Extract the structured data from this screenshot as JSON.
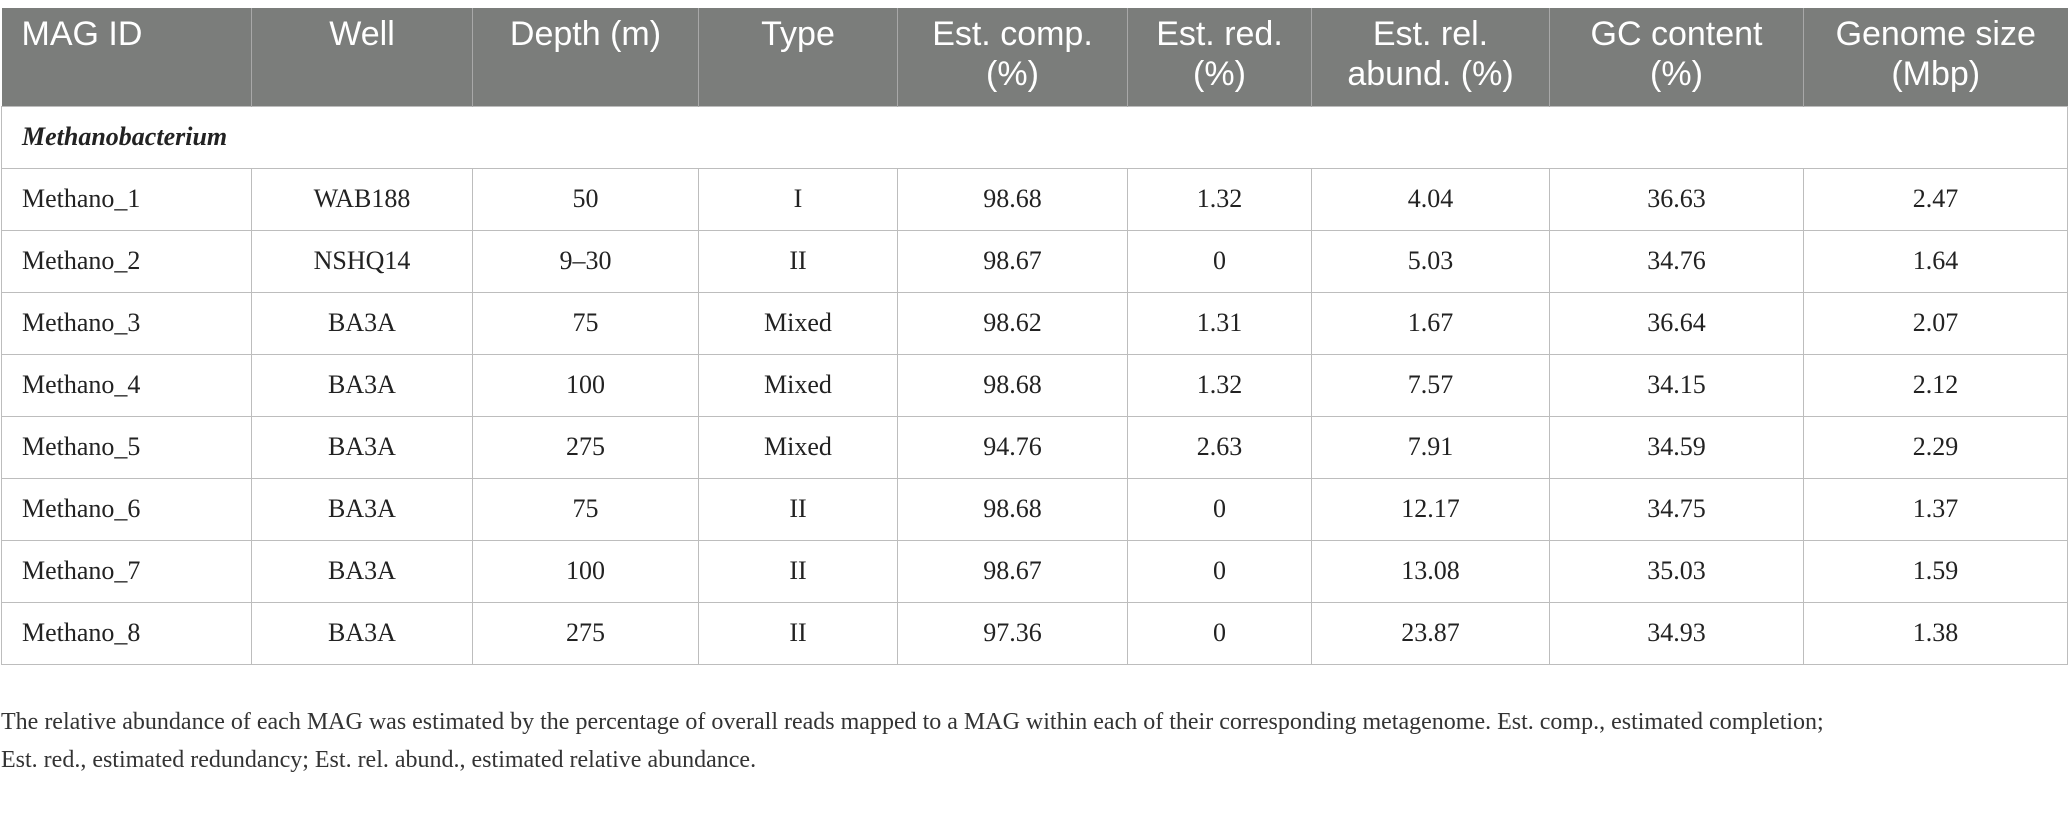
{
  "table": {
    "headers": [
      [
        "MAG ID"
      ],
      [
        "Well"
      ],
      [
        "Depth (m)"
      ],
      [
        "Type"
      ],
      [
        "Est. comp.",
        "(%)"
      ],
      [
        "Est. red.",
        "(%)"
      ],
      [
        "Est. rel.",
        "abund. (%)"
      ],
      [
        "GC content",
        "(%)"
      ],
      [
        "Genome size",
        "(Mbp)"
      ]
    ],
    "group_label": "Methanobacterium",
    "rows": [
      [
        "Methano_1",
        "WAB188",
        "50",
        "I",
        "98.68",
        "1.32",
        "4.04",
        "36.63",
        "2.47"
      ],
      [
        "Methano_2",
        "NSHQ14",
        "9–30",
        "II",
        "98.67",
        "0",
        "5.03",
        "34.76",
        "1.64"
      ],
      [
        "Methano_3",
        "BA3A",
        "75",
        "Mixed",
        "98.62",
        "1.31",
        "1.67",
        "36.64",
        "2.07"
      ],
      [
        "Methano_4",
        "BA3A",
        "100",
        "Mixed",
        "98.68",
        "1.32",
        "7.57",
        "34.15",
        "2.12"
      ],
      [
        "Methano_5",
        "BA3A",
        "275",
        "Mixed",
        "94.76",
        "2.63",
        "7.91",
        "34.59",
        "2.29"
      ],
      [
        "Methano_6",
        "BA3A",
        "75",
        "II",
        "98.68",
        "0",
        "12.17",
        "34.75",
        "1.37"
      ],
      [
        "Methano_7",
        "BA3A",
        "100",
        "II",
        "98.67",
        "0",
        "13.08",
        "35.03",
        "1.59"
      ],
      [
        "Methano_8",
        "BA3A",
        "275",
        "II",
        "97.36",
        "0",
        "23.87",
        "34.93",
        "1.38"
      ]
    ]
  },
  "footnote": {
    "line1": "The relative abundance of each MAG was estimated by the percentage of overall reads mapped to a MAG within each of their corresponding metagenome. Est. comp., estimated completion;",
    "line2": "Est. red., estimated redundancy; Est. rel. abund., estimated relative abundance."
  }
}
